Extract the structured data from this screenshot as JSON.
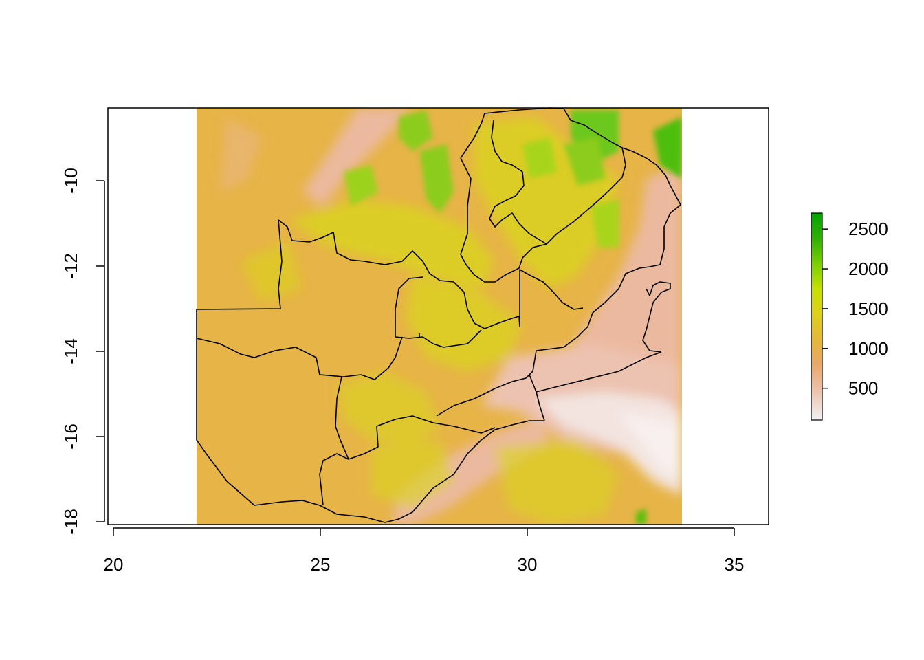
{
  "map": {
    "x_axis": {
      "ticks": [
        20,
        25,
        30,
        35
      ],
      "labels": [
        "20",
        "25",
        "30",
        "35"
      ]
    },
    "y_axis": {
      "ticks": [
        -10,
        -12,
        -14,
        -16,
        -18
      ],
      "labels": [
        "-10",
        "-12",
        "-14",
        "-16",
        "-18"
      ]
    },
    "extent": {
      "lon": [
        22.0,
        33.7
      ],
      "lat": [
        -18.0,
        -8.2
      ]
    },
    "legend": {
      "ticks": [
        500,
        1000,
        1500,
        2000,
        2500
      ],
      "labels": [
        "500",
        "1000",
        "1500",
        "2000",
        "2500"
      ],
      "range": [
        100,
        2700
      ],
      "colors": [
        "#f2f2f2",
        "#ecc2ad",
        "#e9a86a",
        "#e6b63a",
        "#dcd21a",
        "#c8e000",
        "#7dd000",
        "#2eb000",
        "#00a600"
      ]
    },
    "raster_palette": {
      "lowland": "#eab9a4",
      "plateau": "#e7b448",
      "highland": "#d6d619",
      "mountain": "#6cc81a",
      "valley_low": "#f3e0dc"
    }
  }
}
